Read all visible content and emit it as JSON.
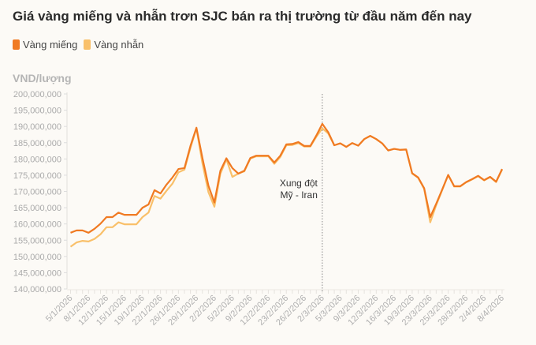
{
  "title": "Giá vàng miếng và nhẫn trơn SJC bán ra thị trường từ đầu năm đến nay",
  "legend": [
    {
      "label": "Vàng miếng",
      "color": "#f07a22"
    },
    {
      "label": "Vàng nhẫn",
      "color": "#f9c06a"
    }
  ],
  "chart_data": {
    "type": "line",
    "ylabel": "VND/lượng",
    "ylim": [
      140000000,
      200000000
    ],
    "y_ticks": [
      "200,000,000",
      "195,000,000",
      "190,000,000",
      "185,000,000",
      "180,000,000",
      "175,000,000",
      "170,000,000",
      "165,000,000",
      "160,000,000",
      "155,000,000",
      "150,000,000",
      "145,000,000",
      "140,000,000"
    ],
    "x_tick_labels": [
      "5/1/2026",
      "8/1/2026",
      "12/1/2026",
      "15/1/2026",
      "19/1/2026",
      "22/1/2026",
      "26/1/2026",
      "29/1/2026",
      "2/2/2026",
      "5/2/2026",
      "9/2/2026",
      "12/2/2026",
      "23/2/2026",
      "26/2/2026",
      "2/3/2026",
      "5/3/2026",
      "9/3/2026",
      "12/3/2026",
      "16/3/2026",
      "19/3/2026",
      "23/3/2026",
      "25/3/2026",
      "28/3/2026",
      "2/4/2026",
      "8/4/2026"
    ],
    "annotation": {
      "lines": [
        "Xung đột",
        "Mỹ - Iran"
      ],
      "at_label": "2/3/2026"
    },
    "series": [
      {
        "name": "Vàng miếng",
        "values": [
          157300000,
          158000000,
          158000000,
          157300000,
          158500000,
          160100000,
          162100000,
          162100000,
          163500000,
          162800000,
          162800000,
          162800000,
          165000000,
          166000000,
          170400000,
          169400000,
          172100000,
          174300000,
          176900000,
          177200000,
          184000000,
          189600000,
          180300000,
          171800000,
          166600000,
          176400000,
          180200000,
          177200000,
          175500000,
          176400000,
          180300000,
          181000000,
          181000000,
          181000000,
          178900000,
          181000000,
          184500000,
          184600000,
          185200000,
          184000000,
          184000000,
          187200000,
          190800000,
          188200000,
          184200000,
          184800000,
          183700000,
          184900000,
          184100000,
          186100000,
          187100000,
          186100000,
          184800000,
          182600000,
          183100000,
          182800000,
          182900000,
          175600000,
          174300000,
          171000000,
          162100000,
          166200000,
          170600000,
          175100000,
          171600000,
          171600000,
          172900000,
          173800000,
          174800000,
          173500000,
          174500000,
          173000000,
          176900000
        ]
      },
      {
        "name": "Vàng nhẫn",
        "values": [
          153000000,
          154300000,
          154800000,
          154600000,
          155400000,
          156800000,
          159000000,
          159000000,
          160500000,
          159900000,
          159900000,
          159900000,
          162100000,
          163500000,
          168600000,
          167800000,
          170200000,
          172400000,
          175900000,
          176700000,
          183400000,
          189400000,
          178700000,
          169800000,
          165300000,
          175500000,
          179900000,
          174500000,
          175500000,
          176200000,
          180100000,
          180800000,
          180800000,
          180800000,
          178500000,
          180600000,
          184200000,
          184300000,
          184900000,
          183800000,
          183800000,
          186800000,
          189400000,
          187800000,
          184200000,
          184800000,
          183700000,
          184900000,
          184100000,
          186100000,
          187100000,
          186100000,
          184800000,
          182600000,
          183100000,
          182800000,
          182900000,
          175500000,
          174200000,
          170800000,
          160500000,
          165800000,
          170400000,
          175000000,
          171500000,
          171500000,
          172800000,
          173700000,
          174700000,
          173400000,
          174400000,
          172900000,
          176700000
        ]
      }
    ]
  }
}
